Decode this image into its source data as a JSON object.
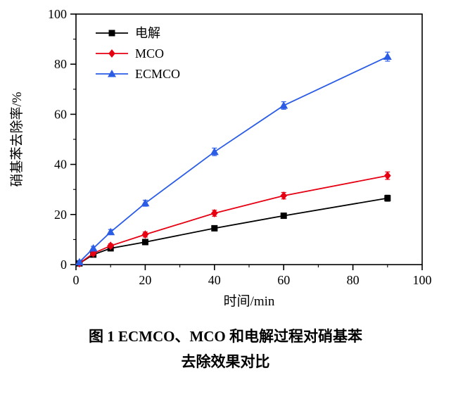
{
  "chart_data": {
    "type": "line",
    "title": "",
    "xlabel": "时间/min",
    "ylabel": "硝基苯去除率/%",
    "xlim": [
      0,
      100
    ],
    "ylim": [
      0,
      100
    ],
    "xticks": [
      0,
      20,
      40,
      60,
      80,
      100
    ],
    "yticks": [
      0,
      20,
      40,
      60,
      80,
      100
    ],
    "minor_tick_step": 10,
    "grid": false,
    "legend_position": "top-left",
    "axis_color": "#000000",
    "error_bars": true,
    "x": [
      1,
      5,
      10,
      20,
      40,
      60,
      90
    ],
    "series": [
      {
        "name": "电解",
        "color": "#000000",
        "marker": "square",
        "values": [
          0.5,
          4.0,
          6.5,
          9.0,
          14.5,
          19.5,
          26.5
        ],
        "errors": [
          0.5,
          0.7,
          0.7,
          0.8,
          1.0,
          1.0,
          1.2
        ]
      },
      {
        "name": "MCO",
        "color": "#e60012",
        "marker": "diamond",
        "values": [
          0.5,
          4.5,
          7.5,
          12.0,
          20.5,
          27.5,
          35.5
        ],
        "errors": [
          0.5,
          0.7,
          0.8,
          1.0,
          1.2,
          1.3,
          1.5
        ]
      },
      {
        "name": "ECMCO",
        "color": "#2a5ce6",
        "marker": "triangle",
        "values": [
          1.0,
          6.5,
          13.0,
          24.5,
          45.0,
          63.5,
          83.0
        ],
        "errors": [
          0.5,
          0.8,
          1.0,
          1.2,
          1.5,
          1.5,
          1.8
        ]
      }
    ]
  },
  "caption": {
    "line1": "图 1  ECMCO、MCO 和电解过程对硝基苯",
    "line2": "去除效果对比"
  }
}
